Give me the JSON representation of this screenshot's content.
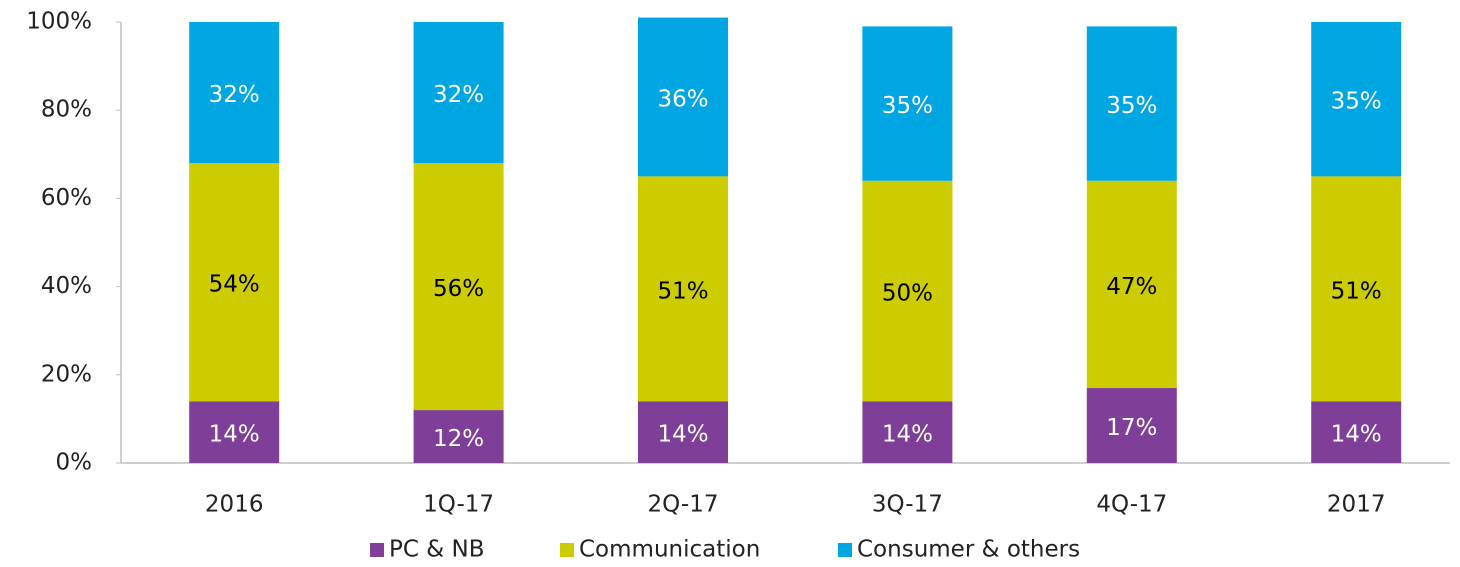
{
  "chart_data": {
    "type": "bar",
    "stacked": true,
    "categories": [
      "2016",
      "1Q-17",
      "2Q-17",
      "3Q-17",
      "4Q-17",
      "2017"
    ],
    "series": [
      {
        "name": "PC & NB",
        "color": "#7f3f98",
        "label_color": "#ffffff",
        "values": [
          14,
          12,
          14,
          14,
          17,
          14
        ],
        "value_labels": [
          "14%",
          "12%",
          "14%",
          "14%",
          "17%",
          "14%"
        ]
      },
      {
        "name": "Communication",
        "color": "#cccc00",
        "label_color": "#000000",
        "values": [
          54,
          56,
          51,
          50,
          47,
          51
        ],
        "value_labels": [
          "54%",
          "56%",
          "51%",
          "50%",
          "47%",
          "51%"
        ]
      },
      {
        "name": "Consumer & others",
        "color": "#00a6e2",
        "label_color": "#ffffff",
        "values": [
          32,
          32,
          36,
          35,
          35,
          35
        ],
        "value_labels": [
          "32%",
          "32%",
          "36%",
          "35%",
          "35%",
          "35%"
        ]
      }
    ],
    "ylim": [
      0,
      100
    ],
    "yticks": [
      {
        "value": 0,
        "label": "0%"
      },
      {
        "value": 20,
        "label": "20%"
      },
      {
        "value": 40,
        "label": "40%"
      },
      {
        "value": 60,
        "label": "60%"
      },
      {
        "value": 80,
        "label": "80%"
      },
      {
        "value": 100,
        "label": "100%"
      }
    ],
    "grid": false,
    "legend": "bottom"
  }
}
